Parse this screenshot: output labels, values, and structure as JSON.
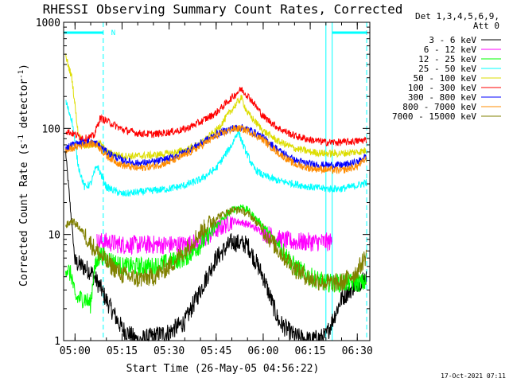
{
  "chart_data": {
    "type": "line",
    "title": "RHESSI Observing Summary Count Rates, Corrected",
    "xlabel": "Start Time (26-May-05 04:56:22)",
    "ylabel_main": "Corrected Count Rate (s",
    "ylabel_sup1": "-1",
    "ylabel_mid": " detector",
    "ylabel_sup2": "-1",
    "ylabel_end": ")",
    "timestamp": "17-Oct-2021 07:11",
    "y_scale": "log",
    "ylim": [
      1,
      1000
    ],
    "xlim": [
      "04:56:22",
      "06:34:00"
    ],
    "y_ticks": [
      {
        "value": 1,
        "label": "1"
      },
      {
        "value": 10,
        "label": "10"
      },
      {
        "value": 100,
        "label": "100"
      },
      {
        "value": 1000,
        "label": "1000"
      }
    ],
    "x_ticks": [
      {
        "value": "05:00",
        "label": "05:00"
      },
      {
        "value": "05:15",
        "label": "05:15"
      },
      {
        "value": "05:30",
        "label": "05:30"
      },
      {
        "value": "05:45",
        "label": "05:45"
      },
      {
        "value": "06:00",
        "label": "06:00"
      },
      {
        "value": "06:15",
        "label": "06:15"
      },
      {
        "value": "06:30",
        "label": "06:30"
      }
    ],
    "legend_header": [
      "Det 1,3,4,5,6,9,",
      "Att 0"
    ],
    "legend_placement": "right",
    "annotations": [
      {
        "kind": "night",
        "range": [
          "04:56:22",
          "05:09:00"
        ],
        "color": "#00ffff"
      },
      {
        "kind": "night",
        "range": [
          "06:22:00",
          "06:33:00"
        ],
        "color": "#00ffff"
      },
      {
        "kind": "saa_flag",
        "text": "N",
        "at": "05:10:00",
        "color": "#00ffff"
      },
      {
        "kind": "marker",
        "at": "06:20:00",
        "color": "#00ffff"
      }
    ],
    "series": [
      {
        "name": "3 - 6 keV",
        "color": "#000000",
        "points": [
          [
            "04:57",
            60
          ],
          [
            "05:00",
            5.5
          ],
          [
            "05:05",
            4.5
          ],
          [
            "05:08",
            3.2
          ],
          [
            "05:10",
            2.4
          ],
          [
            "05:15",
            1.3
          ],
          [
            "05:20",
            1.0
          ],
          [
            "05:25",
            1.1
          ],
          [
            "05:30",
            1.2
          ],
          [
            "05:35",
            1.5
          ],
          [
            "05:40",
            3.0
          ],
          [
            "05:45",
            6.0
          ],
          [
            "05:50",
            8.5
          ],
          [
            "05:55",
            8.0
          ],
          [
            "06:00",
            4.0
          ],
          [
            "06:05",
            1.5
          ],
          [
            "06:10",
            1.1
          ],
          [
            "06:15",
            1.0
          ],
          [
            "06:20",
            1.1
          ],
          [
            "06:25",
            2.5
          ],
          [
            "06:30",
            3.5
          ],
          [
            "06:33",
            4.0
          ]
        ]
      },
      {
        "name": "6 - 12 keV",
        "color": "#ff00ff",
        "points": [
          [
            "05:07",
            8.5
          ],
          [
            "05:10",
            8.5
          ],
          [
            "05:15",
            8.0
          ],
          [
            "05:20",
            8.0
          ],
          [
            "05:25",
            8.0
          ],
          [
            "05:30",
            8.0
          ],
          [
            "05:35",
            8.0
          ],
          [
            "05:40",
            8.5
          ],
          [
            "05:45",
            11.0
          ],
          [
            "05:50",
            13.5
          ],
          [
            "05:53",
            13.0
          ],
          [
            "05:55",
            12.5
          ],
          [
            "06:00",
            10.5
          ],
          [
            "06:05",
            9.0
          ],
          [
            "06:10",
            8.5
          ],
          [
            "06:15",
            8.5
          ],
          [
            "06:20",
            8.5
          ],
          [
            "06:22",
            8.5
          ]
        ]
      },
      {
        "name": "12 - 25 keV",
        "color": "#00ff00",
        "points": [
          [
            "04:57",
            5.0
          ],
          [
            "04:59",
            4.0
          ],
          [
            "05:00",
            2.5
          ],
          [
            "05:03",
            2.5
          ],
          [
            "05:05",
            2.2
          ],
          [
            "05:06",
            4.5
          ],
          [
            "05:08",
            6.5
          ],
          [
            "05:10",
            6.0
          ],
          [
            "05:15",
            5.0
          ],
          [
            "05:20",
            5.0
          ],
          [
            "05:25",
            5.0
          ],
          [
            "05:30",
            5.5
          ],
          [
            "05:35",
            6.0
          ],
          [
            "05:40",
            8.0
          ],
          [
            "05:45",
            12.0
          ],
          [
            "05:50",
            17.0
          ],
          [
            "05:53",
            18.5
          ],
          [
            "05:55",
            17.0
          ],
          [
            "06:00",
            12.0
          ],
          [
            "06:05",
            8.0
          ],
          [
            "06:10",
            5.0
          ],
          [
            "06:15",
            4.0
          ],
          [
            "06:20",
            3.5
          ],
          [
            "06:25",
            3.5
          ],
          [
            "06:30",
            3.5
          ],
          [
            "06:33",
            3.5
          ]
        ]
      },
      {
        "name": "25 - 50 keV",
        "color": "#00ffff",
        "points": [
          [
            "04:57",
            180
          ],
          [
            "04:59",
            120
          ],
          [
            "05:01",
            45
          ],
          [
            "05:03",
            28
          ],
          [
            "05:05",
            30
          ],
          [
            "05:07",
            45
          ],
          [
            "05:10",
            28
          ],
          [
            "05:15",
            24
          ],
          [
            "05:20",
            25
          ],
          [
            "05:25",
            26
          ],
          [
            "05:30",
            27
          ],
          [
            "05:35",
            29
          ],
          [
            "05:40",
            33
          ],
          [
            "05:45",
            42
          ],
          [
            "05:50",
            70
          ],
          [
            "05:52",
            95
          ],
          [
            "05:54",
            65
          ],
          [
            "05:57",
            42
          ],
          [
            "06:00",
            36
          ],
          [
            "06:05",
            32
          ],
          [
            "06:10",
            30
          ],
          [
            "06:15",
            28
          ],
          [
            "06:20",
            27
          ],
          [
            "06:25",
            27
          ],
          [
            "06:30",
            29
          ],
          [
            "06:33",
            31
          ]
        ]
      },
      {
        "name": "50 - 100 keV",
        "color": "#dddd00",
        "points": [
          [
            "04:57",
            480
          ],
          [
            "04:59",
            300
          ],
          [
            "05:01",
            90
          ],
          [
            "05:03",
            68
          ],
          [
            "05:06",
            70
          ],
          [
            "05:08",
            72
          ],
          [
            "05:10",
            60
          ],
          [
            "05:15",
            55
          ],
          [
            "05:20",
            55
          ],
          [
            "05:25",
            56
          ],
          [
            "05:30",
            58
          ],
          [
            "05:35",
            62
          ],
          [
            "05:40",
            72
          ],
          [
            "05:45",
            95
          ],
          [
            "05:50",
            150
          ],
          [
            "05:53",
            195
          ],
          [
            "05:55",
            140
          ],
          [
            "06:00",
            95
          ],
          [
            "06:05",
            75
          ],
          [
            "06:10",
            65
          ],
          [
            "06:15",
            60
          ],
          [
            "06:20",
            58
          ],
          [
            "06:25",
            58
          ],
          [
            "06:30",
            60
          ],
          [
            "06:33",
            62
          ]
        ]
      },
      {
        "name": "100 - 300 keV",
        "color": "#ff0000",
        "points": [
          [
            "04:57",
            95
          ],
          [
            "04:59",
            90
          ],
          [
            "05:01",
            85
          ],
          [
            "05:03",
            80
          ],
          [
            "05:06",
            85
          ],
          [
            "05:08",
            125
          ],
          [
            "05:10",
            118
          ],
          [
            "05:15",
            98
          ],
          [
            "05:20",
            90
          ],
          [
            "05:25",
            88
          ],
          [
            "05:30",
            92
          ],
          [
            "05:35",
            98
          ],
          [
            "05:40",
            115
          ],
          [
            "05:45",
            140
          ],
          [
            "05:50",
            195
          ],
          [
            "05:53",
            235
          ],
          [
            "05:56",
            190
          ],
          [
            "06:00",
            130
          ],
          [
            "06:05",
            100
          ],
          [
            "06:10",
            85
          ],
          [
            "06:15",
            78
          ],
          [
            "06:20",
            74
          ],
          [
            "06:25",
            74
          ],
          [
            "06:30",
            76
          ],
          [
            "06:33",
            78
          ]
        ]
      },
      {
        "name": "300 - 800 keV",
        "color": "#0000ff",
        "points": [
          [
            "04:57",
            65
          ],
          [
            "04:59",
            70
          ],
          [
            "05:01",
            72
          ],
          [
            "05:04",
            75
          ],
          [
            "05:07",
            72
          ],
          [
            "05:10",
            60
          ],
          [
            "05:15",
            50
          ],
          [
            "05:20",
            47
          ],
          [
            "05:25",
            48
          ],
          [
            "05:30",
            52
          ],
          [
            "05:35",
            60
          ],
          [
            "05:40",
            72
          ],
          [
            "05:45",
            88
          ],
          [
            "05:50",
            100
          ],
          [
            "05:53",
            102
          ],
          [
            "05:56",
            96
          ],
          [
            "06:00",
            82
          ],
          [
            "06:05",
            62
          ],
          [
            "06:10",
            50
          ],
          [
            "06:15",
            46
          ],
          [
            "06:20",
            45
          ],
          [
            "06:25",
            45
          ],
          [
            "06:30",
            48
          ],
          [
            "06:33",
            55
          ]
        ]
      },
      {
        "name": "800 - 7000 keV",
        "color": "#ff8c00",
        "points": [
          [
            "04:57",
            60
          ],
          [
            "04:59",
            65
          ],
          [
            "05:01",
            68
          ],
          [
            "05:04",
            72
          ],
          [
            "05:07",
            70
          ],
          [
            "05:10",
            55
          ],
          [
            "05:15",
            45
          ],
          [
            "05:20",
            42
          ],
          [
            "05:25",
            44
          ],
          [
            "05:30",
            48
          ],
          [
            "05:35",
            56
          ],
          [
            "05:40",
            68
          ],
          [
            "05:45",
            85
          ],
          [
            "05:50",
            98
          ],
          [
            "05:53",
            100
          ],
          [
            "05:56",
            92
          ],
          [
            "06:00",
            78
          ],
          [
            "06:05",
            58
          ],
          [
            "06:10",
            46
          ],
          [
            "06:15",
            42
          ],
          [
            "06:20",
            41
          ],
          [
            "06:25",
            40
          ],
          [
            "06:30",
            44
          ],
          [
            "06:33",
            52
          ]
        ]
      },
      {
        "name": "7000 - 15000 keV",
        "color": "#808000",
        "points": [
          [
            "04:57",
            12
          ],
          [
            "04:59",
            13.5
          ],
          [
            "05:01",
            12
          ],
          [
            "05:03",
            10
          ],
          [
            "05:06",
            7.5
          ],
          [
            "05:10",
            5.5
          ],
          [
            "05:15",
            4.2
          ],
          [
            "05:20",
            3.8
          ],
          [
            "05:25",
            4.0
          ],
          [
            "05:30",
            5.0
          ],
          [
            "05:35",
            7.0
          ],
          [
            "05:40",
            10.5
          ],
          [
            "05:45",
            14.5
          ],
          [
            "05:50",
            17.0
          ],
          [
            "05:53",
            17.0
          ],
          [
            "05:56",
            15.0
          ],
          [
            "06:00",
            11.0
          ],
          [
            "06:05",
            7.0
          ],
          [
            "06:10",
            4.8
          ],
          [
            "06:15",
            3.8
          ],
          [
            "06:20",
            3.5
          ],
          [
            "06:25",
            3.5
          ],
          [
            "06:30",
            4.5
          ],
          [
            "06:33",
            6.5
          ]
        ]
      }
    ]
  }
}
